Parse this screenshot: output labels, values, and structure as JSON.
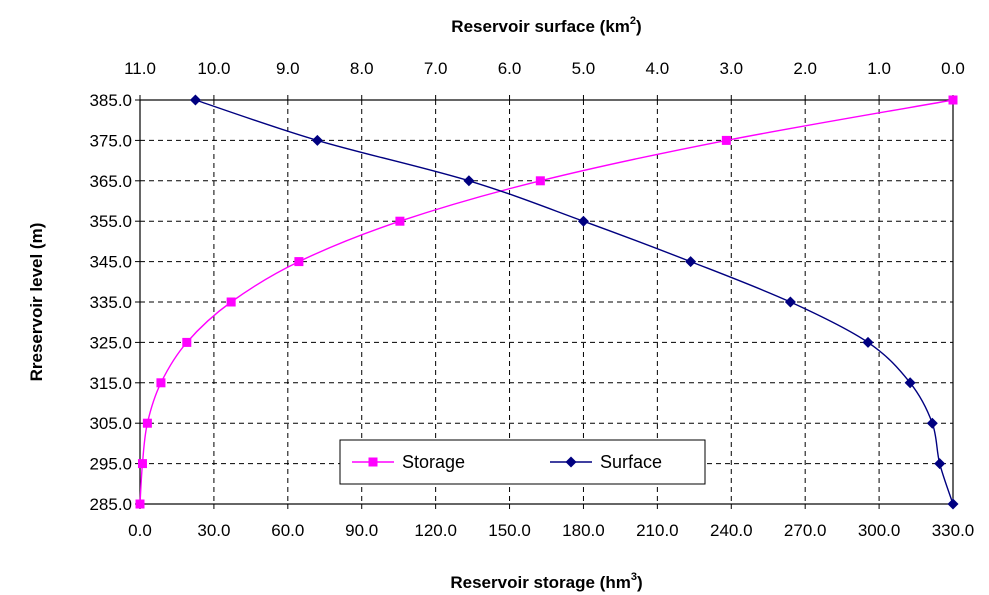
{
  "chart_data": {
    "type": "line",
    "title": "",
    "ylabel": "Rreservoir level (m)",
    "xlabel_bottom": "Reservoir storage (hm",
    "xlabel_bottom_sup": "3",
    "xlabel_bottom_end": ")",
    "xlabel_top": "Reservoir surface (km",
    "xlabel_top_sup": "2",
    "xlabel_top_end": ")",
    "ylim": [
      285,
      385
    ],
    "xlim_bottom": [
      0,
      330
    ],
    "xlim_top": [
      11,
      0
    ],
    "y_ticks": [
      "385.0",
      "375.0",
      "365.0",
      "355.0",
      "345.0",
      "335.0",
      "325.0",
      "315.0",
      "305.0",
      "295.0",
      "285.0"
    ],
    "x_bottom_ticks": [
      "0.0",
      "30.0",
      "60.0",
      "90.0",
      "120.0",
      "150.0",
      "180.0",
      "210.0",
      "240.0",
      "270.0",
      "300.0",
      "330.0"
    ],
    "x_top_ticks": [
      "11.0",
      "10.0",
      "9.0",
      "8.0",
      "7.0",
      "6.0",
      "5.0",
      "4.0",
      "3.0",
      "2.0",
      "1.0",
      "0.0"
    ],
    "grid": true,
    "legend_position": "bottom-center",
    "series": [
      {
        "name": "Storage",
        "axis": "bottom",
        "color": "#ff00ff",
        "marker": "square",
        "points": [
          {
            "x": 0.0,
            "y": 285
          },
          {
            "x": 1.0,
            "y": 295
          },
          {
            "x": 3.0,
            "y": 305
          },
          {
            "x": 8.5,
            "y": 315
          },
          {
            "x": 19.0,
            "y": 325
          },
          {
            "x": 37.0,
            "y": 335
          },
          {
            "x": 64.5,
            "y": 345
          },
          {
            "x": 105.5,
            "y": 355
          },
          {
            "x": 162.5,
            "y": 365
          },
          {
            "x": 238.0,
            "y": 375
          },
          {
            "x": 330.0,
            "y": 385
          }
        ]
      },
      {
        "name": "Surface",
        "axis": "top",
        "color": "#000080",
        "marker": "diamond",
        "points": [
          {
            "x": 0.0,
            "y": 285
          },
          {
            "x": 0.18,
            "y": 295
          },
          {
            "x": 0.28,
            "y": 305
          },
          {
            "x": 0.58,
            "y": 315
          },
          {
            "x": 1.15,
            "y": 325
          },
          {
            "x": 2.2,
            "y": 335
          },
          {
            "x": 3.55,
            "y": 345
          },
          {
            "x": 5.0,
            "y": 355
          },
          {
            "x": 6.55,
            "y": 365
          },
          {
            "x": 8.6,
            "y": 375
          },
          {
            "x": 10.25,
            "y": 385
          }
        ]
      }
    ]
  }
}
